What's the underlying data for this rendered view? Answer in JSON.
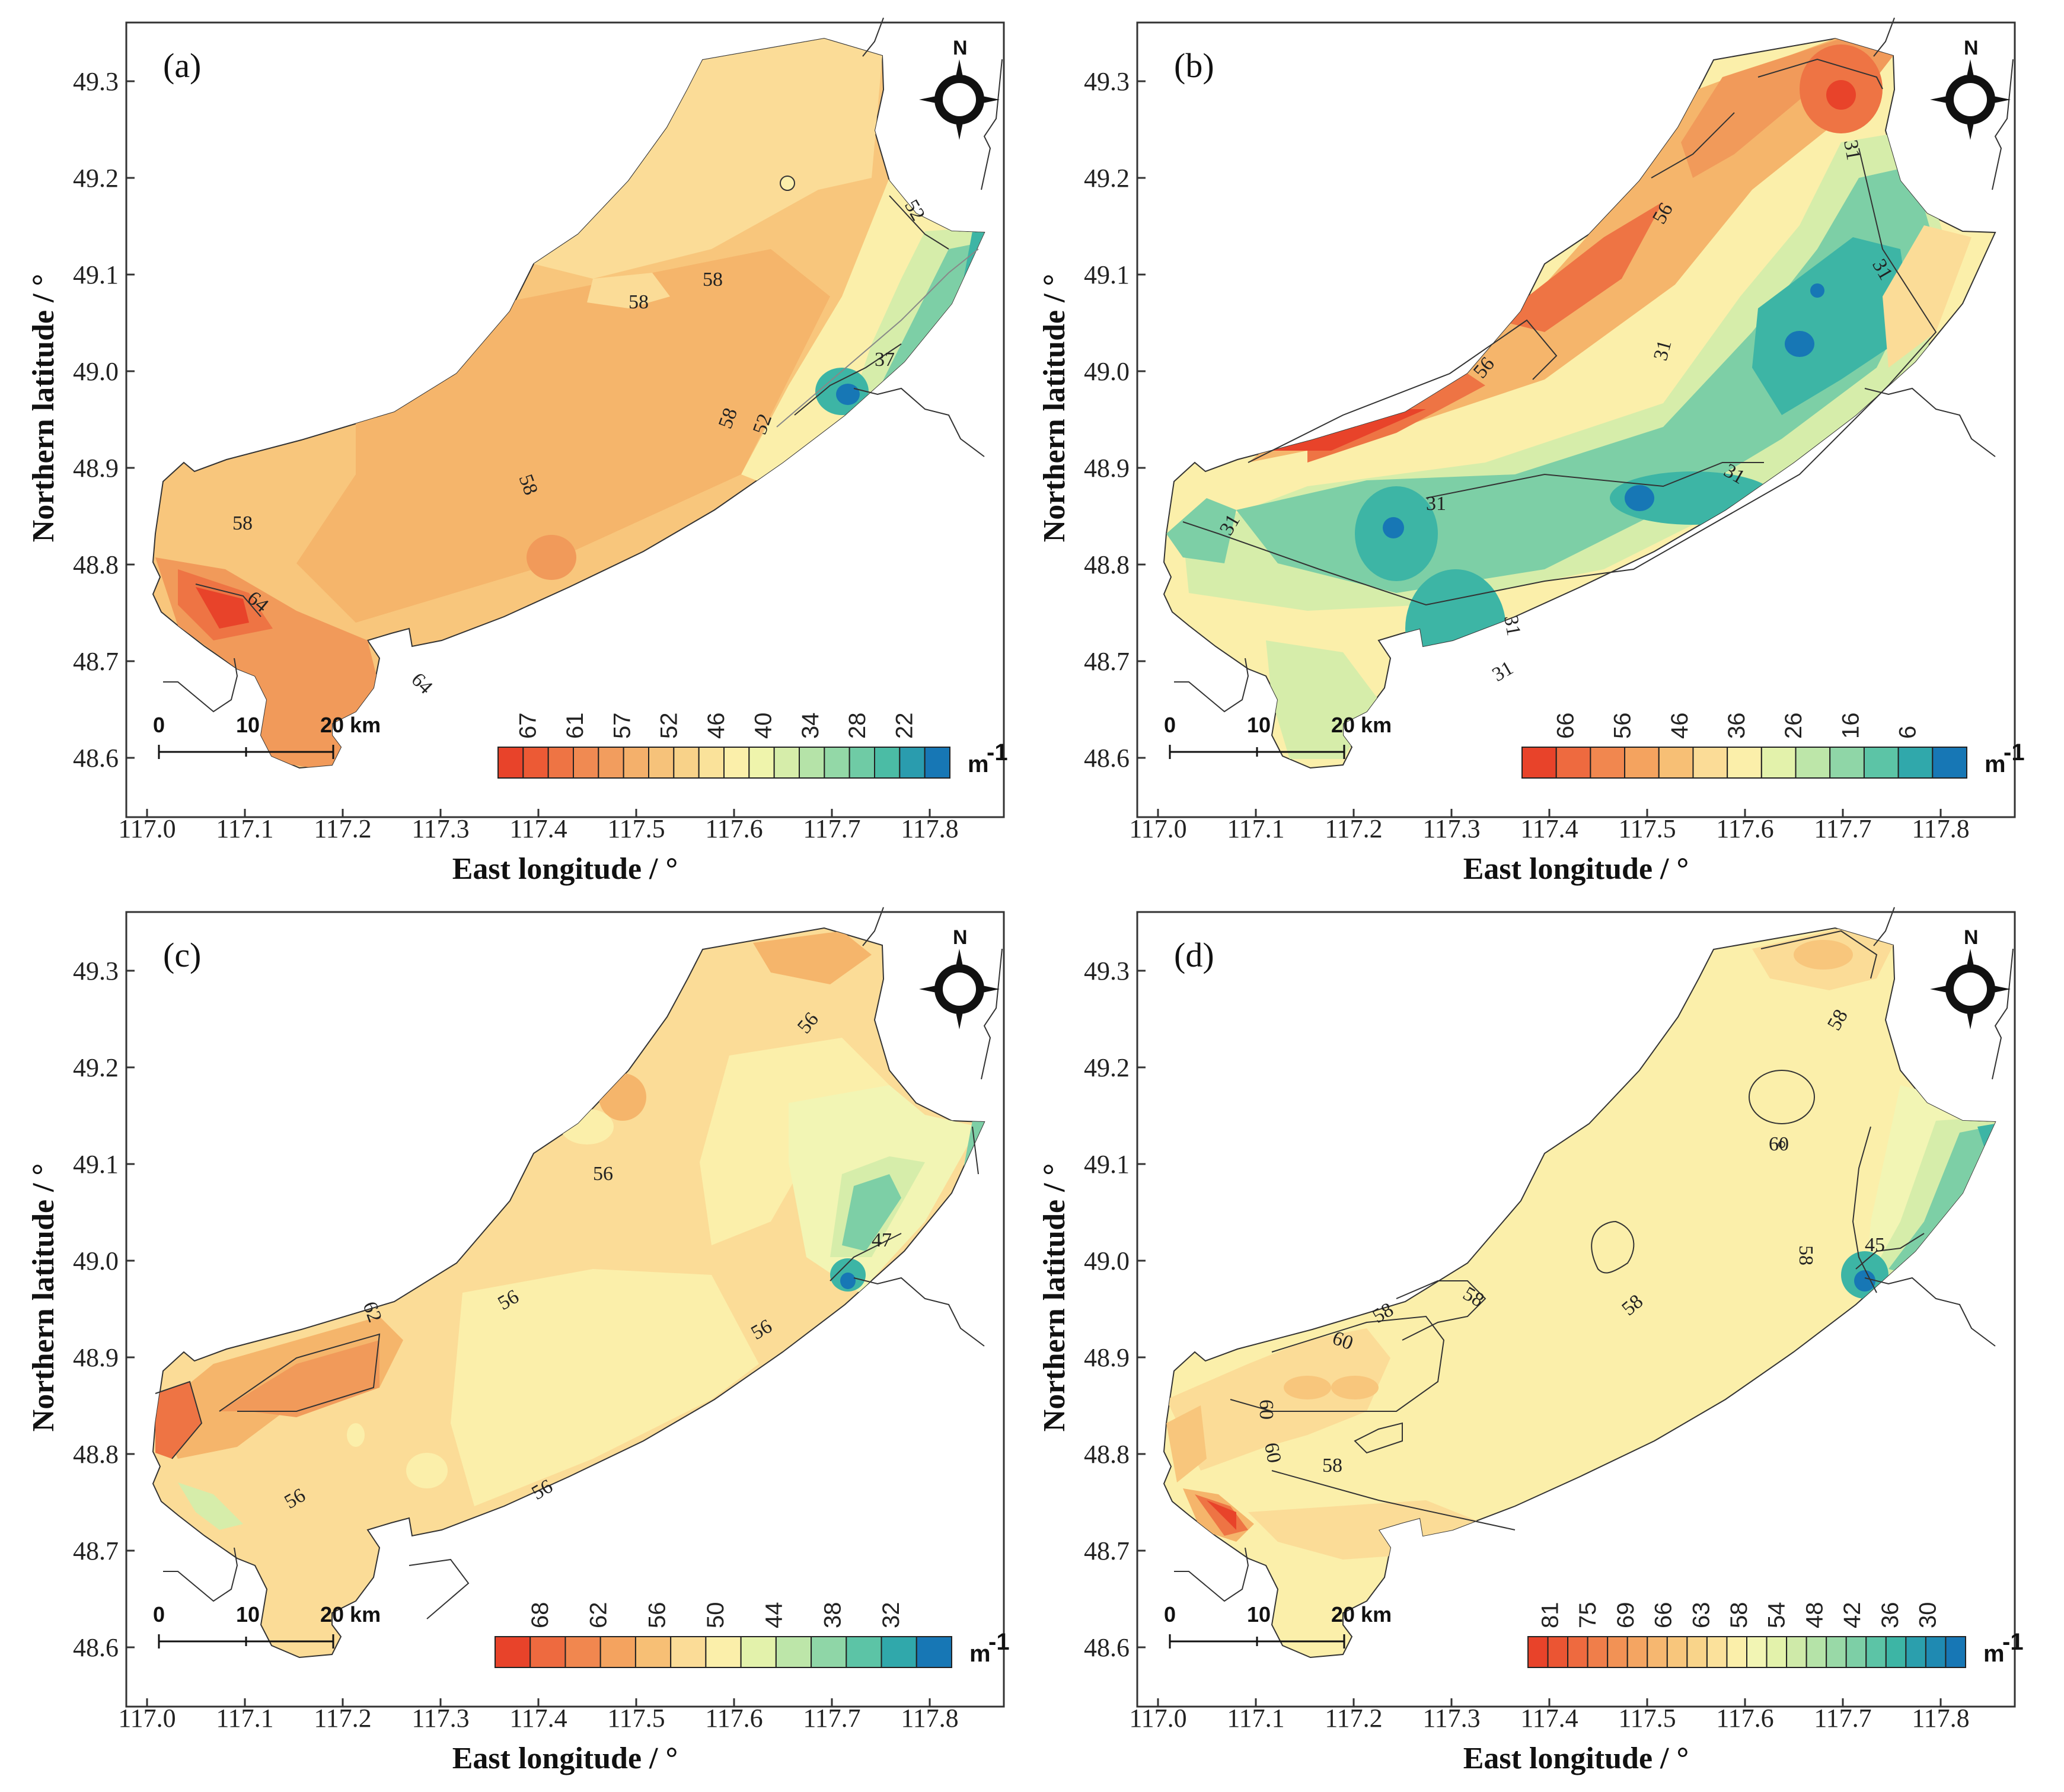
{
  "figure": {
    "xlabel": "East longitude / °",
    "ylabel": "Northern latitude / °",
    "x_ticks": [
      "117.0",
      "117.1",
      "117.2",
      "117.3",
      "117.4",
      "117.5",
      "117.6",
      "117.7",
      "117.8"
    ],
    "y_ticks": [
      "49.3",
      "49.2",
      "49.1",
      "49.0",
      "48.9",
      "48.8",
      "48.7",
      "48.6"
    ],
    "north_label": "N",
    "scale_bar": {
      "t0": "0",
      "t1": "10",
      "t2": "20 km"
    },
    "unit": "m",
    "unit_sup": "-1"
  },
  "panels": [
    {
      "label": "(a)",
      "colorbar_ticks": [
        "67",
        "61",
        "57",
        "52",
        "46",
        "40",
        "34",
        "28",
        "22"
      ],
      "contour_labels": [
        "52",
        "58",
        "58",
        "58",
        "52",
        "37",
        "58",
        "58",
        "64",
        "64"
      ]
    },
    {
      "label": "(b)",
      "colorbar_ticks": [
        "66",
        "56",
        "46",
        "36",
        "26",
        "16",
        "6"
      ],
      "contour_labels": [
        "31",
        "56",
        "31",
        "31",
        "56",
        "31",
        "31",
        "31",
        "31",
        "31"
      ]
    },
    {
      "label": "(c)",
      "colorbar_ticks": [
        "68",
        "62",
        "56",
        "50",
        "44",
        "38",
        "32"
      ],
      "contour_labels": [
        "56",
        "56",
        "47",
        "62",
        "56",
        "56",
        "56",
        "56"
      ]
    },
    {
      "label": "(d)",
      "colorbar_ticks": [
        "81",
        "75",
        "69",
        "66",
        "63",
        "58",
        "54",
        "48",
        "42",
        "36",
        "30"
      ],
      "contour_labels": [
        "58",
        "60",
        "58",
        "58",
        "45",
        "58",
        "60",
        "58",
        "60",
        "60",
        "58"
      ]
    }
  ],
  "colors": {
    "red": "#e8432a",
    "orange": "#f2a25b",
    "light_orange": "#f8cf86",
    "yellow": "#fbefaa",
    "light_green": "#d6edaa",
    "green": "#7dcfa6",
    "teal": "#3db5a5",
    "blue": "#1777b5"
  }
}
